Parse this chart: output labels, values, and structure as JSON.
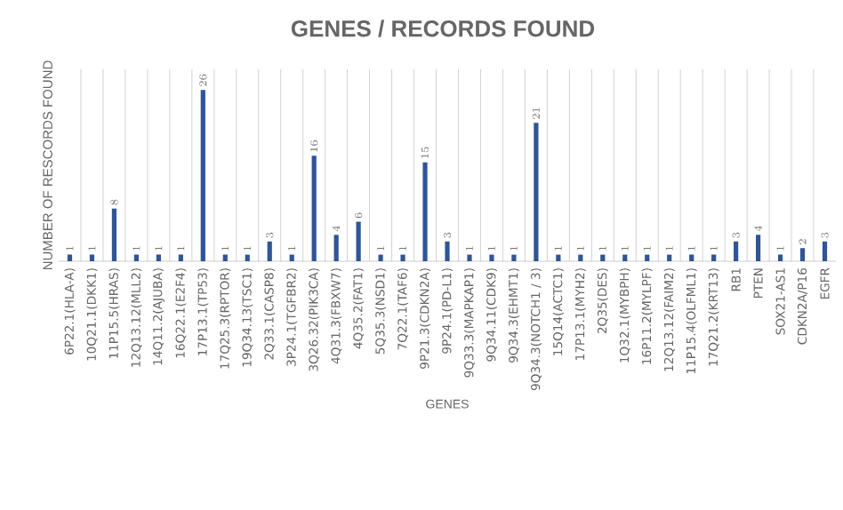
{
  "chart_data": {
    "type": "bar",
    "title": "GENES / RECORDS FOUND",
    "xlabel": "GENES",
    "ylabel": "NUMBER OF RESCORDS FOUND",
    "categories": [
      "6P22.1(HLA-A)",
      "10Q21.1(DKK1)",
      "11P15.5(HRAS)",
      "12Q13.12(MLL2)",
      "14Q11.2(AJUBA)",
      "16Q22.1(E2F4)",
      "17P13.1(TP53)",
      "17Q25.3(RPTOR)",
      "19Q34.13(TSC1)",
      "2Q33.1(CASP8)",
      "3P24.1(TGFBR2)",
      "3Q26.32(PIK3CA)",
      "4Q31.3(FBXW7)",
      "4Q35.2(FAT1)",
      "5Q35.3(NSD1)",
      "7Q22.1(TAF6)",
      "9P21.3(CDKN2A)",
      "9P24.1(PD-L1)",
      "9Q33.3(MAPKAP1)",
      "9Q34.11(CDK9)",
      "9Q34.3(EHMT1)",
      "9Q34.3(NOTCH1 / 3)",
      "15Q14(ACTC1)",
      "17P13.1(MYH2)",
      "2Q35(DES)",
      "1Q32.1(MYBPH)",
      "16P11.2(MYLPF)",
      "12Q13.12(FAIM2)",
      "11P15.4(OLFML1)",
      "17Q21.2(KRT13)",
      "RB1",
      "PTEN",
      "SOX21-AS1",
      "CDKN2A/P16",
      "EGFR"
    ],
    "values": [
      1,
      1,
      8,
      1,
      1,
      1,
      26,
      1,
      1,
      3,
      1,
      16,
      4,
      6,
      1,
      1,
      15,
      3,
      1,
      1,
      1,
      21,
      1,
      1,
      1,
      1,
      1,
      1,
      1,
      1,
      3,
      4,
      1,
      2,
      3
    ],
    "color": "#2f5597",
    "data_labels": true,
    "grid": "x"
  }
}
